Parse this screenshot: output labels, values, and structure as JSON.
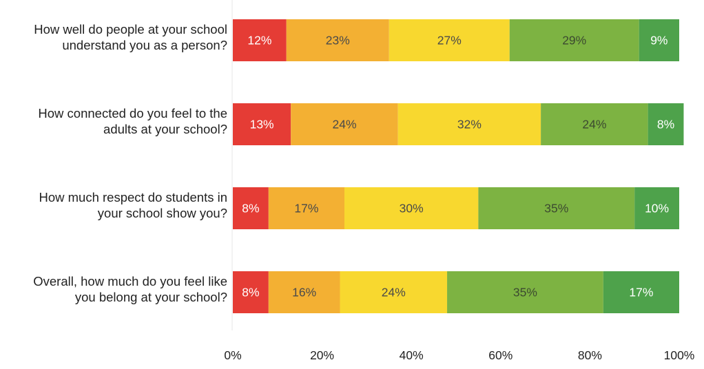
{
  "chart_data": {
    "type": "bar",
    "orientation": "horizontal",
    "stacked": true,
    "percent_stacked": true,
    "categories": [
      [
        "How well do people at your school",
        "understand you as a person?"
      ],
      [
        "How connected do you feel to the",
        "adults at your school?"
      ],
      [
        "How much respect do students in",
        "your school show you?"
      ],
      [
        "Overall, how much do you feel like",
        "you belong at your school?"
      ]
    ],
    "series": [
      {
        "color": "#e53c35",
        "label_color": "#ffffff",
        "values": [
          12,
          13,
          8,
          8
        ]
      },
      {
        "color": "#f3b033",
        "label_color": "#4a4a4a",
        "values": [
          23,
          24,
          17,
          16
        ]
      },
      {
        "color": "#f8d82f",
        "label_color": "#4a4a4a",
        "values": [
          27,
          32,
          30,
          24
        ]
      },
      {
        "color": "#7db342",
        "label_color": "#3c4a30",
        "values": [
          29,
          24,
          35,
          35
        ]
      },
      {
        "color": "#4ea24b",
        "label_color": "#ffffff",
        "values": [
          9,
          8,
          10,
          17
        ]
      }
    ],
    "data_labels": [
      [
        "12%",
        "23%",
        "27%",
        "29%",
        "9%"
      ],
      [
        "13%",
        "24%",
        "32%",
        "24%",
        "8%"
      ],
      [
        "8%",
        "17%",
        "30%",
        "35%",
        "10%"
      ],
      [
        "8%",
        "16%",
        "24%",
        "35%",
        "17%"
      ]
    ],
    "xlim": [
      0,
      100
    ],
    "x_ticks": [
      "0%",
      "20%",
      "40%",
      "60%",
      "80%",
      "100%"
    ],
    "grid": false,
    "legend": "none",
    "title": "",
    "xlabel": "",
    "ylabel": ""
  }
}
